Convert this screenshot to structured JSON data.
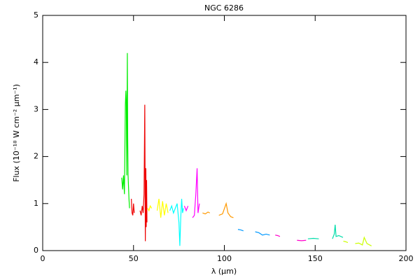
{
  "chart_data": {
    "type": "line",
    "title": "NGC 6286",
    "xlabel": "λ (μm)",
    "ylabel": "Flux (10⁻¹⁸ W cm⁻² μm⁻¹)",
    "xlim": [
      0,
      200
    ],
    "ylim": [
      0,
      5
    ],
    "xticks": [
      0,
      50,
      100,
      150,
      200
    ],
    "yticks": [
      0,
      1,
      2,
      3,
      4,
      5
    ],
    "series": [
      {
        "color": "#00ee00",
        "x": [
          43.5,
          44.0,
          44.5,
          45.0,
          45.5,
          45.8,
          46.0,
          46.3,
          46.6,
          46.8,
          47.0,
          47.2,
          47.5,
          47.8
        ],
        "values": [
          1.55,
          1.3,
          1.6,
          1.2,
          3.1,
          3.4,
          3.2,
          1.6,
          4.2,
          2.4,
          1.6,
          1.4,
          1.1,
          0.9
        ]
      },
      {
        "color": "#ee0000",
        "x": [
          48.8,
          49.2,
          49.6,
          50.0,
          50.4,
          null,
          53.6,
          54.2,
          54.8,
          55.3,
          55.8,
          56.2,
          56.5,
          56.8,
          57.0,
          57.2,
          57.4
        ],
        "values": [
          1.1,
          0.8,
          0.75,
          1.0,
          0.8,
          null,
          0.85,
          0.75,
          0.95,
          0.8,
          1.2,
          3.1,
          0.2,
          1.75,
          0.5,
          1.5,
          0.6
        ]
      },
      {
        "color": "#ffff00",
        "x": [
          57.8,
          58.5,
          59.2,
          60.0,
          null,
          63.0,
          64.0,
          65.0,
          66.0,
          67.0,
          68.0,
          69.0
        ],
        "values": [
          0.9,
          0.85,
          0.95,
          0.9,
          null,
          0.85,
          1.1,
          0.7,
          1.05,
          0.75,
          1.0,
          0.8
        ]
      },
      {
        "color": "#00ffff",
        "x": [
          70.0,
          71.0,
          72.0,
          73.0,
          74.0,
          75.0,
          75.5,
          76.0,
          76.5,
          77.0,
          77.5
        ],
        "values": [
          0.85,
          0.95,
          0.8,
          0.9,
          1.0,
          0.6,
          0.1,
          0.7,
          1.1,
          0.8,
          0.9
        ]
      },
      {
        "color": "#ff00ff",
        "x": [
          78.0,
          79.0,
          80.0,
          null,
          82.5,
          83.5,
          84.3,
          85.0,
          85.5,
          86.3
        ],
        "values": [
          0.95,
          0.85,
          0.95,
          null,
          0.7,
          0.75,
          1.2,
          1.75,
          0.8,
          1.0
        ]
      },
      {
        "color": "#ff9900",
        "x": [
          88.0,
          89.5,
          91.0,
          92.0,
          null,
          97.0,
          99.0,
          101.0,
          102.0,
          103.5,
          105.0
        ],
        "values": [
          0.8,
          0.78,
          0.82,
          0.8,
          null,
          0.75,
          0.78,
          1.0,
          0.8,
          0.72,
          0.7
        ]
      },
      {
        "color": "#0099ff",
        "x": [
          107.5,
          109.0,
          110.5,
          null,
          117.0,
          119.0,
          121.0,
          123.0,
          125.0
        ],
        "values": [
          0.45,
          0.44,
          0.42,
          null,
          0.4,
          0.38,
          0.33,
          0.35,
          0.33
        ]
      },
      {
        "color": "#ff00cc",
        "x": [
          128.0,
          129.3,
          130.6,
          null,
          140.0,
          142.5,
          145.0
        ],
        "values": [
          0.33,
          0.32,
          0.3,
          null,
          0.22,
          0.21,
          0.22
        ]
      },
      {
        "color": "#00ddaa",
        "x": [
          146.0,
          149.0,
          152.0,
          null,
          159.5,
          160.5,
          161.0,
          161.5,
          163.0,
          165.3
        ],
        "values": [
          0.25,
          0.26,
          0.25,
          null,
          0.25,
          0.35,
          0.55,
          0.3,
          0.32,
          0.28
        ]
      },
      {
        "color": "#ccff00",
        "x": [
          165.5,
          166.7,
          168.0,
          null,
          172.0,
          174.0,
          176.0,
          177.0,
          178.5,
          180.0,
          181.0
        ],
        "values": [
          0.2,
          0.19,
          0.17,
          null,
          0.15,
          0.16,
          0.12,
          0.28,
          0.15,
          0.12,
          0.1
        ]
      }
    ]
  }
}
